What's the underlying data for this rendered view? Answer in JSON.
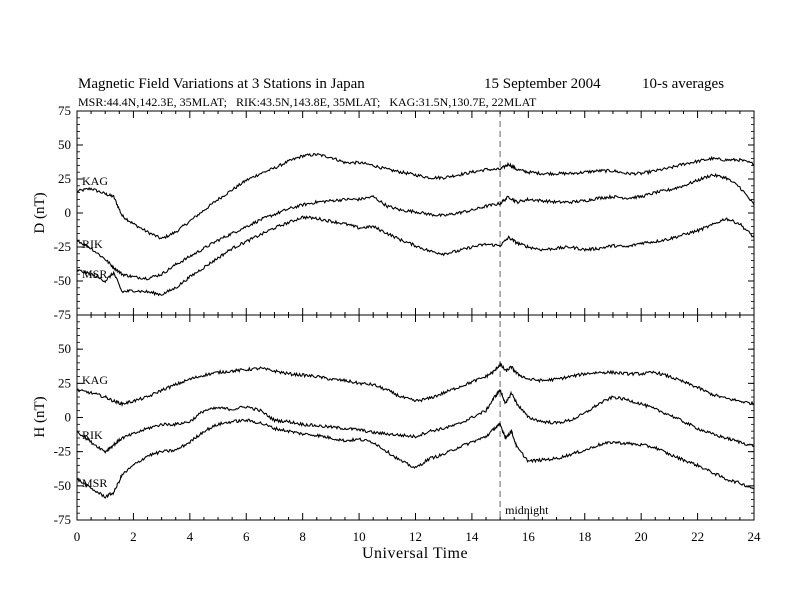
{
  "header": {
    "title": "Magnetic Field Variations at 3 Stations in Japan",
    "date": "15 September 2004",
    "averaging": "10-s averages",
    "stations_line": "MSR:44.4N,142.3E, 35MLAT;   RIK:43.5N,143.8E, 35MLAT;   KAG:31.5N,130.7E, 22MLAT"
  },
  "chart_data": [
    {
      "type": "line",
      "panel": "D",
      "ylabel": "D (nT)",
      "ylim": [
        -75,
        75
      ],
      "yticks": [
        -75,
        -50,
        -25,
        0,
        25,
        50,
        75
      ],
      "xlim": [
        0,
        24
      ],
      "series": [
        {
          "name": "KAG",
          "x": [
            0,
            0.5,
            1.0,
            1.3,
            1.6,
            2.0,
            2.5,
            3.0,
            3.5,
            4.0,
            4.5,
            5.0,
            5.5,
            6.0,
            6.5,
            7.0,
            7.5,
            8.0,
            8.5,
            9.0,
            9.5,
            10.0,
            10.5,
            11.0,
            11.5,
            12.0,
            12.5,
            13.0,
            13.5,
            14.0,
            14.5,
            15.0,
            15.3,
            15.6,
            16.0,
            16.5,
            17.0,
            17.5,
            18.0,
            18.5,
            19.0,
            19.5,
            20.0,
            20.5,
            21.0,
            21.5,
            22.0,
            22.5,
            23.0,
            23.5,
            24.0
          ],
          "values": [
            16,
            18,
            14,
            12,
            -2,
            -8,
            -14,
            -19,
            -14,
            -6,
            2,
            10,
            17,
            24,
            29,
            33,
            38,
            42,
            43,
            41,
            37,
            37,
            35,
            32,
            30,
            28,
            26,
            26,
            28,
            30,
            32,
            32,
            36,
            32,
            30,
            29,
            29,
            29,
            30,
            31,
            31,
            29,
            29,
            31,
            33,
            36,
            38,
            40,
            39,
            39,
            36
          ]
        },
        {
          "name": "RIK",
          "x": [
            0,
            0.5,
            1.0,
            1.3,
            1.6,
            2.0,
            2.5,
            3.0,
            3.5,
            4.0,
            4.5,
            5.0,
            5.5,
            6.0,
            6.5,
            7.0,
            7.5,
            8.0,
            8.5,
            9.0,
            9.5,
            10.0,
            10.5,
            11.0,
            11.5,
            12.0,
            12.5,
            13.0,
            13.5,
            14.0,
            14.5,
            15.0,
            15.3,
            15.6,
            16.0,
            16.5,
            17.0,
            17.5,
            18.0,
            18.5,
            19.0,
            19.5,
            20.0,
            20.5,
            21.0,
            21.5,
            22.0,
            22.5,
            23.0,
            23.5,
            24.0
          ],
          "values": [
            -20,
            -26,
            -34,
            -40,
            -45,
            -47,
            -48,
            -45,
            -38,
            -32,
            -26,
            -20,
            -15,
            -10,
            -5,
            -1,
            3,
            6,
            8,
            9,
            10,
            10,
            12,
            5,
            2,
            1,
            -1,
            -2,
            0,
            2,
            5,
            7,
            12,
            8,
            10,
            9,
            8,
            8,
            9,
            11,
            12,
            11,
            12,
            15,
            17,
            20,
            24,
            28,
            26,
            19,
            6
          ]
        },
        {
          "name": "MSR",
          "x": [
            0,
            0.5,
            1.0,
            1.3,
            1.6,
            2.0,
            2.5,
            3.0,
            3.5,
            4.0,
            4.5,
            5.0,
            5.5,
            6.0,
            6.5,
            7.0,
            7.5,
            8.0,
            8.5,
            9.0,
            9.5,
            10.0,
            10.5,
            11.0,
            11.5,
            12.0,
            12.5,
            13.0,
            13.5,
            14.0,
            14.5,
            15.0,
            15.3,
            15.6,
            16.0,
            16.5,
            17.0,
            17.5,
            18.0,
            18.5,
            19.0,
            19.5,
            20.0,
            20.5,
            21.0,
            21.5,
            22.0,
            22.5,
            23.0,
            23.5,
            24.0
          ],
          "values": [
            -42,
            -45,
            -50,
            -44,
            -58,
            -57,
            -58,
            -60,
            -55,
            -47,
            -40,
            -33,
            -26,
            -21,
            -16,
            -11,
            -7,
            -3,
            -4,
            -6,
            -8,
            -11,
            -10,
            -15,
            -20,
            -24,
            -28,
            -30,
            -28,
            -25,
            -23,
            -24,
            -18,
            -22,
            -25,
            -27,
            -26,
            -25,
            -27,
            -26,
            -24,
            -25,
            -22,
            -21,
            -19,
            -16,
            -13,
            -9,
            -4,
            -8,
            -18
          ]
        }
      ]
    },
    {
      "type": "line",
      "panel": "H",
      "ylabel": "H (nT)",
      "xlabel": "Universal Time",
      "ylim": [
        -75,
        75
      ],
      "yticks": [
        -75,
        -50,
        -25,
        0,
        25,
        50
      ],
      "xlim": [
        0,
        24
      ],
      "xticks": [
        0,
        2,
        4,
        6,
        8,
        10,
        12,
        14,
        16,
        18,
        20,
        22,
        24
      ],
      "annotation": {
        "x": 15,
        "label": "midnight"
      },
      "series": [
        {
          "name": "KAG",
          "x": [
            0,
            0.5,
            1.0,
            1.3,
            1.6,
            2.0,
            2.5,
            3.0,
            3.5,
            4.0,
            4.5,
            5.0,
            5.5,
            6.0,
            6.5,
            7.0,
            7.5,
            8.0,
            8.5,
            9.0,
            9.5,
            10.0,
            10.5,
            11.0,
            11.5,
            12.0,
            12.5,
            13.0,
            13.5,
            14.0,
            14.5,
            14.8,
            15.0,
            15.2,
            15.4,
            15.6,
            16.0,
            16.5,
            17.0,
            17.5,
            18.0,
            18.5,
            19.0,
            19.5,
            20.0,
            20.5,
            21.0,
            21.5,
            22.0,
            22.5,
            23.0,
            23.5,
            24.0
          ],
          "values": [
            20,
            18,
            15,
            12,
            10,
            12,
            15,
            20,
            24,
            28,
            31,
            33,
            34,
            35,
            36,
            34,
            32,
            31,
            30,
            28,
            27,
            25,
            24,
            20,
            15,
            12,
            14,
            18,
            22,
            26,
            30,
            34,
            39,
            34,
            37,
            32,
            28,
            27,
            28,
            30,
            32,
            33,
            33,
            32,
            32,
            33,
            30,
            26,
            22,
            17,
            14,
            12,
            10
          ]
        },
        {
          "name": "RIK",
          "x": [
            0,
            0.5,
            1.0,
            1.3,
            1.6,
            2.0,
            2.5,
            3.0,
            3.5,
            4.0,
            4.5,
            5.0,
            5.5,
            6.0,
            6.5,
            7.0,
            7.5,
            8.0,
            8.5,
            9.0,
            9.5,
            10.0,
            10.5,
            11.0,
            11.5,
            12.0,
            12.5,
            13.0,
            13.5,
            14.0,
            14.5,
            14.8,
            15.0,
            15.2,
            15.4,
            15.6,
            16.0,
            16.5,
            17.0,
            17.5,
            18.0,
            18.5,
            19.0,
            19.5,
            20.0,
            20.5,
            21.0,
            21.5,
            22.0,
            22.5,
            23.0,
            23.5,
            24.0
          ],
          "values": [
            -10,
            -18,
            -25,
            -20,
            -15,
            -12,
            -8,
            -5,
            -5,
            -3,
            5,
            7,
            6,
            8,
            5,
            -2,
            -3,
            -5,
            -6,
            -7,
            -8,
            -9,
            -11,
            -12,
            -13,
            -14,
            -10,
            -8,
            -5,
            0,
            5,
            15,
            20,
            10,
            18,
            10,
            0,
            -3,
            -4,
            -2,
            3,
            10,
            15,
            13,
            10,
            6,
            2,
            -3,
            -8,
            -12,
            -15,
            -18,
            -21
          ]
        },
        {
          "name": "MSR",
          "x": [
            0,
            0.5,
            1.0,
            1.3,
            1.6,
            2.0,
            2.5,
            3.0,
            3.5,
            4.0,
            4.5,
            5.0,
            5.5,
            6.0,
            6.5,
            7.0,
            7.5,
            8.0,
            8.5,
            9.0,
            9.5,
            10.0,
            10.5,
            11.0,
            11.5,
            12.0,
            12.5,
            13.0,
            13.5,
            14.0,
            14.5,
            14.8,
            15.0,
            15.2,
            15.4,
            15.6,
            16.0,
            16.5,
            17.0,
            17.5,
            18.0,
            18.5,
            19.0,
            19.5,
            20.0,
            20.5,
            21.0,
            21.5,
            22.0,
            22.5,
            23.0,
            23.5,
            24.0
          ],
          "values": [
            -45,
            -52,
            -58,
            -55,
            -42,
            -35,
            -28,
            -25,
            -24,
            -18,
            -10,
            -5,
            -3,
            -2,
            -4,
            -8,
            -10,
            -12,
            -13,
            -15,
            -17,
            -16,
            -18,
            -25,
            -32,
            -37,
            -30,
            -27,
            -22,
            -18,
            -14,
            -8,
            -5,
            -15,
            -10,
            -22,
            -32,
            -31,
            -30,
            -27,
            -24,
            -20,
            -18,
            -19,
            -20,
            -22,
            -27,
            -31,
            -35,
            -40,
            -45,
            -48,
            -52
          ]
        }
      ]
    }
  ]
}
